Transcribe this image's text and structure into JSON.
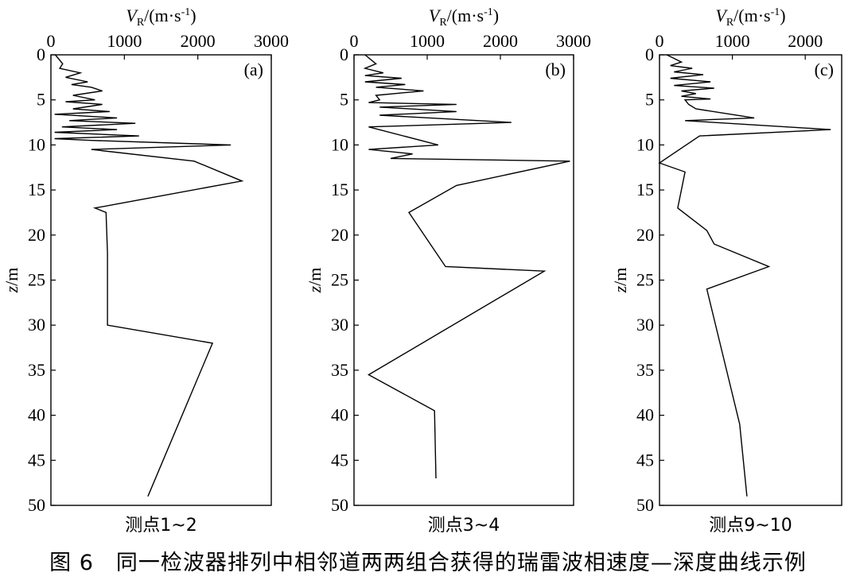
{
  "figure_caption": "图 6　同一检波器排列中相邻道两两组合获得的瑞雷波相速度—深度曲线示例",
  "chart_data": [
    {
      "type": "line",
      "panel_label": "(a)",
      "subtitle": "测点1~2",
      "xlabel": "V_R/(m·s^-1)",
      "ylabel": "z/m",
      "xlim": [
        0,
        3000
      ],
      "ylim": [
        0,
        50
      ],
      "y_inverted": true,
      "x_ticks": [
        0,
        1000,
        2000,
        3000
      ],
      "y_ticks": [
        0,
        5,
        10,
        15,
        20,
        25,
        30,
        35,
        40,
        45,
        50
      ],
      "series": [
        {
          "x": [
            60,
            160,
            120,
            400,
            200,
            500,
            280,
            550,
            700,
            300,
            600,
            200,
            700,
            300,
            800,
            50,
            900,
            250,
            1150,
            150,
            900,
            50,
            1200,
            50,
            550,
            2450,
            550,
            1950,
            2600,
            600,
            750,
            770,
            770,
            2200,
            1320
          ],
          "y": [
            0,
            1,
            1.5,
            2,
            2.5,
            3,
            3.3,
            3.6,
            4,
            4.5,
            5,
            5.2,
            5.5,
            6,
            6.3,
            6.6,
            7,
            7.3,
            7.6,
            8,
            8.3,
            8.6,
            9,
            9.3,
            9.5,
            10,
            10.5,
            11.8,
            14,
            17,
            17.5,
            22,
            30,
            32,
            49
          ],
          "color": "#000000"
        }
      ]
    },
    {
      "type": "line",
      "panel_label": "(b)",
      "subtitle": "测点3~4",
      "xlabel": "V_R/(m·s^-1)",
      "ylabel": "z/m",
      "xlim": [
        0,
        3000
      ],
      "ylim": [
        0,
        50
      ],
      "y_inverted": true,
      "x_ticks": [
        0,
        1000,
        2000,
        3000
      ],
      "y_ticks": [
        0,
        5,
        10,
        15,
        20,
        25,
        30,
        35,
        40,
        45,
        50
      ],
      "series": [
        {
          "x": [
            150,
            300,
            150,
            400,
            150,
            650,
            150,
            700,
            300,
            950,
            300,
            350,
            200,
            1400,
            350,
            1400,
            350,
            2150,
            200,
            1150,
            200,
            800,
            500,
            2950,
            1400,
            750,
            1250,
            2600,
            200,
            1100,
            1120
          ],
          "y": [
            0,
            1,
            1.5,
            2,
            2.3,
            2.6,
            3,
            3.3,
            3.6,
            4,
            4.5,
            5,
            5.3,
            5.5,
            5.8,
            6.3,
            6.7,
            7.5,
            8,
            10,
            10.5,
            11,
            11.5,
            11.8,
            14.5,
            17.5,
            23.5,
            24,
            35.5,
            39.5,
            47
          ],
          "color": "#000000"
        }
      ]
    },
    {
      "type": "line",
      "panel_label": "(c)",
      "subtitle": "测点9~10",
      "xlabel": "V_R/(m·s^-1)",
      "ylabel": "z/m",
      "xlim": [
        0,
        2500
      ],
      "ylim": [
        0,
        50
      ],
      "y_inverted": true,
      "x_ticks": [
        0,
        1000,
        2000
      ],
      "y_ticks": [
        0,
        5,
        10,
        15,
        20,
        25,
        30,
        35,
        40,
        45,
        50
      ],
      "series": [
        {
          "x": [
            100,
            300,
            150,
            450,
            200,
            600,
            150,
            700,
            200,
            750,
            300,
            500,
            300,
            700,
            350,
            400,
            500,
            1300,
            350,
            2350,
            550,
            0,
            350,
            250,
            650,
            750,
            1500,
            650,
            1100,
            1200
          ],
          "y": [
            0,
            0.8,
            1.2,
            1.5,
            1.9,
            2.2,
            2.6,
            3,
            3.4,
            3.7,
            4,
            4.3,
            4.6,
            4.9,
            5,
            5.5,
            6,
            7,
            7.3,
            8.3,
            9,
            12,
            13,
            17,
            19.5,
            21,
            23.5,
            26,
            41,
            49
          ],
          "color": "#000000"
        }
      ]
    }
  ]
}
